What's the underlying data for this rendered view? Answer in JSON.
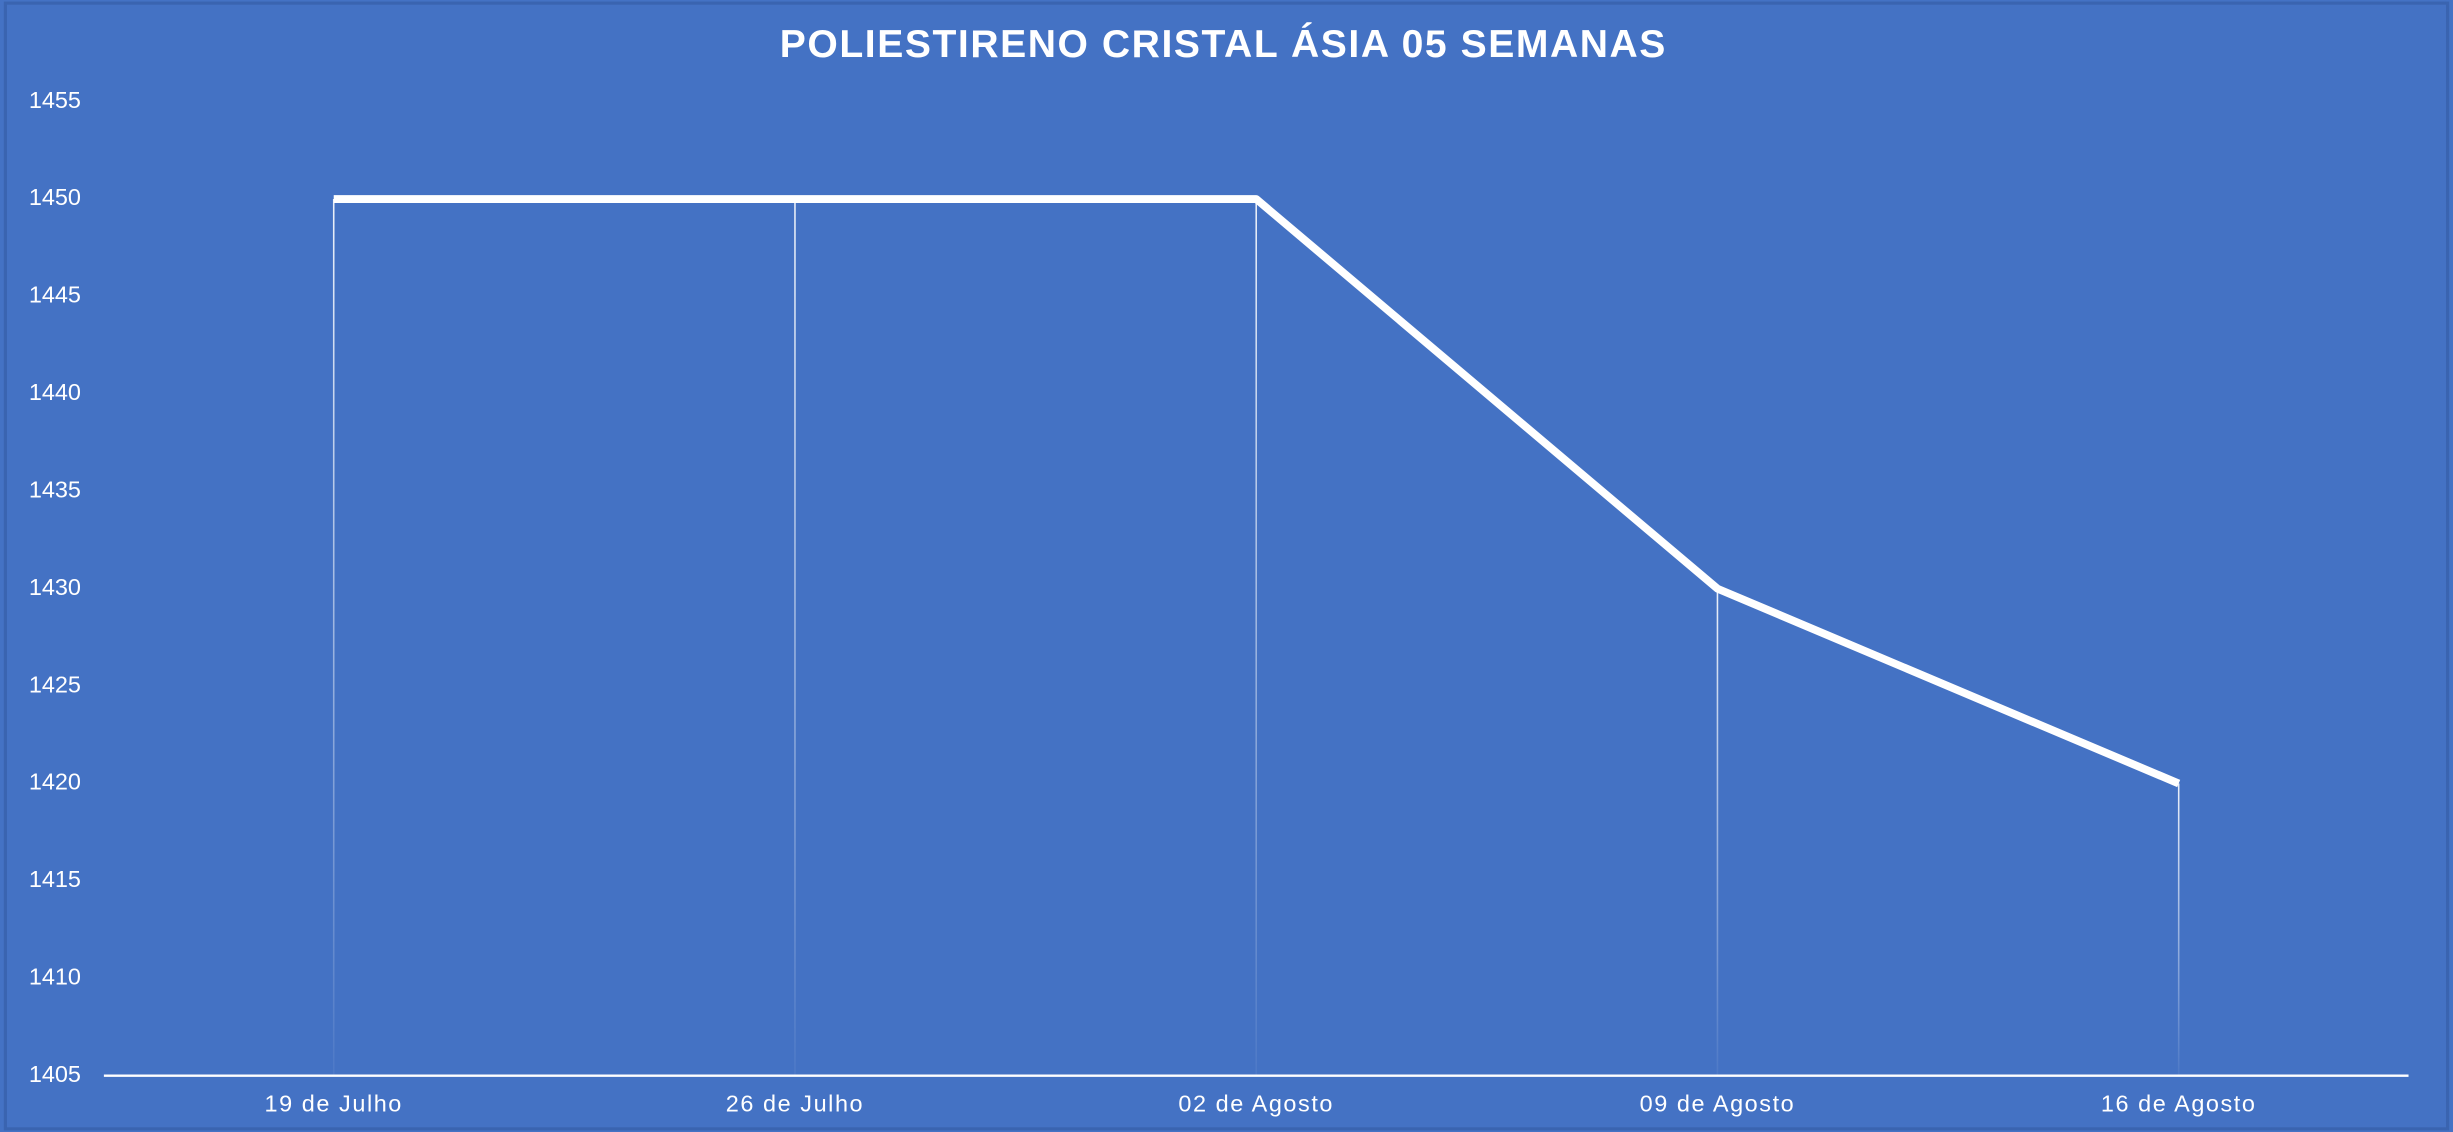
{
  "chart_data": {
    "type": "line",
    "title": "POLIESTIRENO CRISTAL ÁSIA 05 SEMANAS",
    "categories": [
      "19 de Julho",
      "26 de Julho",
      "02 de Agosto",
      "09 de Agosto",
      "16 de Agosto"
    ],
    "values": [
      1450,
      1450,
      1450,
      1430,
      1420
    ],
    "color": "#ffffff",
    "ylim": [
      1405,
      1455
    ],
    "yticks": [
      1405,
      1410,
      1415,
      1420,
      1425,
      1430,
      1435,
      1440,
      1445,
      1450,
      1455
    ],
    "grid": false,
    "drop_lines": true
  }
}
